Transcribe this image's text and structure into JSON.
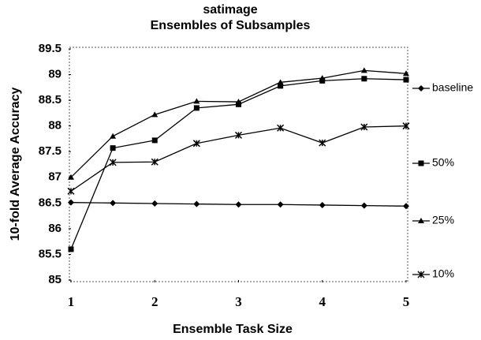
{
  "chart_data": {
    "type": "line",
    "title": "satimage",
    "subtitle": "Ensembles of Subsamples",
    "x_label": "Ensemble Task Size",
    "y_label": "10-fold Average Accuracy",
    "x": [
      1,
      1.5,
      2,
      2.5,
      3,
      3.5,
      4,
      4.5,
      5
    ],
    "xlim": [
      1,
      5
    ],
    "xticks": [
      1,
      2,
      3,
      4,
      5
    ],
    "ylim": [
      85,
      89.5
    ],
    "yticks": [
      85,
      85.5,
      86,
      86.5,
      87,
      87.5,
      88,
      88.5,
      89,
      89.5
    ],
    "series": [
      {
        "name": "baseline",
        "color": "#000000",
        "marker": "diamond",
        "values": [
          86.51,
          86.5,
          86.49,
          86.48,
          86.47,
          86.47,
          86.46,
          86.45,
          86.44
        ]
      },
      {
        "name": "50%",
        "color": "#000000",
        "marker": "square",
        "values": [
          85.6,
          87.57,
          87.72,
          88.35,
          88.42,
          88.78,
          88.88,
          88.92,
          88.9
        ]
      },
      {
        "name": "25%",
        "color": "#000000",
        "marker": "triangle",
        "values": [
          87.0,
          87.8,
          88.22,
          88.48,
          88.47,
          88.85,
          88.93,
          89.08,
          89.02
        ]
      },
      {
        "name": "10%",
        "color": "#000000",
        "marker": "star",
        "values": [
          86.73,
          87.29,
          87.3,
          87.66,
          87.82,
          87.96,
          87.67,
          87.98,
          88.0
        ]
      }
    ]
  }
}
